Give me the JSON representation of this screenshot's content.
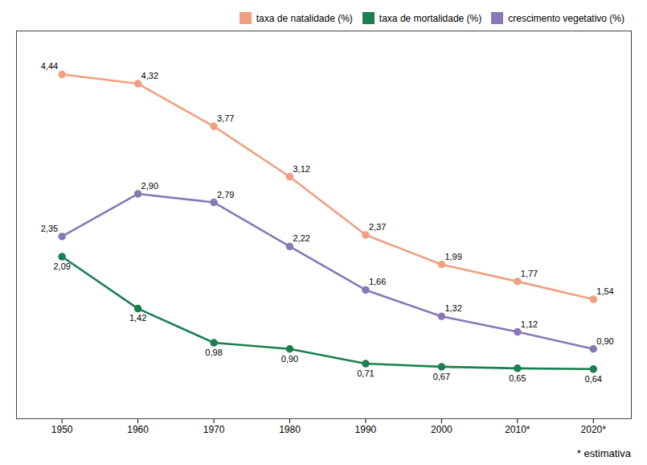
{
  "chart_data": {
    "type": "line",
    "x": [
      1950,
      1960,
      1970,
      1980,
      1990,
      2000,
      2010,
      2020
    ],
    "series": [
      {
        "name": "taxa de natalidade (%)",
        "color": "#f0a080",
        "values": [
          4.44,
          4.32,
          3.77,
          3.12,
          2.37,
          1.99,
          1.77,
          1.54
        ],
        "value_labels": [
          "4,44",
          "4,32",
          "3,77",
          "3,12",
          "2,37",
          "1,99",
          "1,77",
          "1,54"
        ]
      },
      {
        "name": "taxa de mortalidade (%)",
        "color": "#1a8050",
        "values": [
          2.09,
          1.42,
          0.98,
          0.9,
          0.71,
          0.67,
          0.65,
          0.64
        ],
        "value_labels": [
          "2,09",
          "1,42",
          "0,98",
          "0,90",
          "0,71",
          "0,67",
          "0,65",
          "0,64"
        ]
      },
      {
        "name": "crescimento vegetativo (%)",
        "color": "#8878b8",
        "values": [
          2.35,
          2.9,
          2.79,
          2.22,
          1.66,
          1.32,
          1.12,
          0.9
        ],
        "value_labels": [
          "2,35",
          "2,90",
          "2,79",
          "2,22",
          "1,66",
          "1,32",
          "1,12",
          "0,90"
        ]
      }
    ],
    "xlim": [
      1944,
      2025
    ],
    "xticks": [
      1950,
      1960,
      1970,
      1980,
      1990,
      2000,
      {
        "value": 2010,
        "label": "2010*"
      },
      {
        "value": 2020,
        "label": "2020*"
      }
    ],
    "ylim": [
      0.0,
      5.0
    ],
    "tick_labels": "x",
    "grid": false,
    "legend": "upper right",
    "data_labels": true,
    "marker": "circle",
    "annotations": [
      "* estimativa"
    ]
  }
}
